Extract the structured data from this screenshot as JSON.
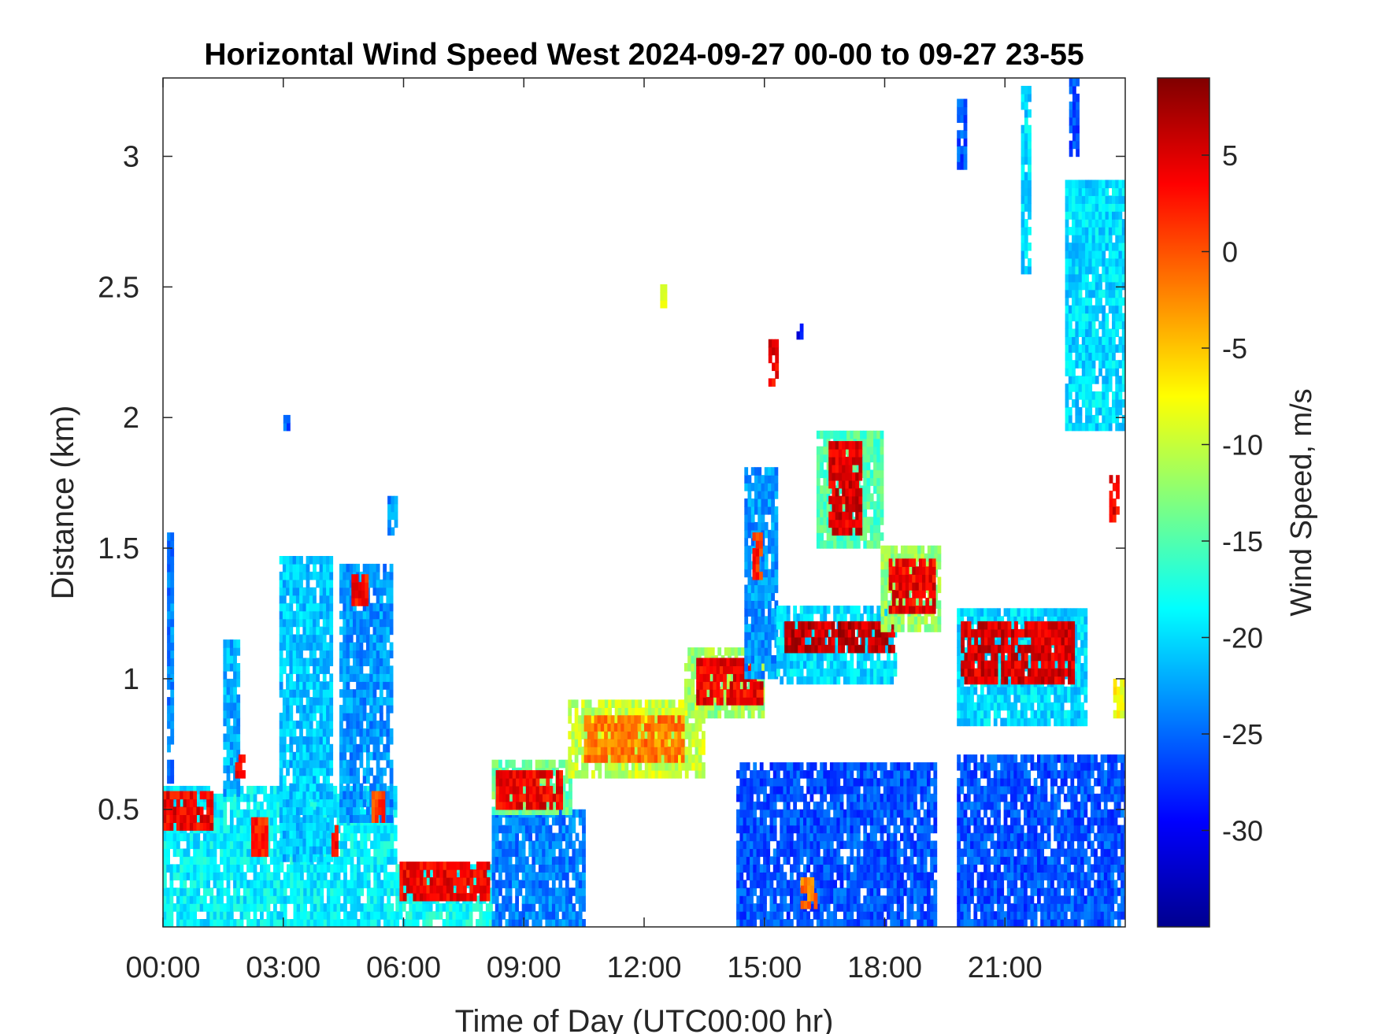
{
  "chart_data": {
    "type": "heatmap",
    "title": "Horizontal Wind Speed West 2024-09-27 00-00 to 09-27 23-55",
    "xlabel": "Time of Day (UTC00:00 hr)",
    "ylabel": "Distance (km)",
    "colorbar_label": "Wind Speed, m/s",
    "xlim": [
      0,
      24
    ],
    "ylim": [
      0.05,
      3.3
    ],
    "x_ticks": [
      {
        "value": 0,
        "label": "00:00"
      },
      {
        "value": 3,
        "label": "03:00"
      },
      {
        "value": 6,
        "label": "06:00"
      },
      {
        "value": 9,
        "label": "09:00"
      },
      {
        "value": 12,
        "label": "12:00"
      },
      {
        "value": 15,
        "label": "15:00"
      },
      {
        "value": 18,
        "label": "18:00"
      },
      {
        "value": 21,
        "label": "21:00"
      }
    ],
    "y_ticks": [
      {
        "value": 0.5,
        "label": "0.5"
      },
      {
        "value": 1,
        "label": "1"
      },
      {
        "value": 1.5,
        "label": "1.5"
      },
      {
        "value": 2,
        "label": "2"
      },
      {
        "value": 2.5,
        "label": "2.5"
      },
      {
        "value": 3,
        "label": "3"
      }
    ],
    "colorbar": {
      "colormap": "jet",
      "range": [
        -35,
        9
      ],
      "ticks": [
        {
          "value": 5,
          "label": "5"
        },
        {
          "value": 0,
          "label": "0"
        },
        {
          "value": -5,
          "label": "-5"
        },
        {
          "value": -10,
          "label": "-10"
        },
        {
          "value": -15,
          "label": "-15"
        },
        {
          "value": -20,
          "label": "-20"
        },
        {
          "value": -25,
          "label": "-25"
        },
        {
          "value": -30,
          "label": "-30"
        }
      ]
    },
    "regions": [
      {
        "t0": 0.0,
        "t1": 5.8,
        "d0": 0.05,
        "d1": 0.58,
        "speed": -19
      },
      {
        "t0": 0.0,
        "t1": 1.2,
        "d0": 0.42,
        "d1": 0.55,
        "speed": 4
      },
      {
        "t0": 0.1,
        "t1": 0.2,
        "d0": 0.6,
        "d1": 1.55,
        "speed": -24
      },
      {
        "t0": 1.5,
        "t1": 1.9,
        "d0": 0.55,
        "d1": 1.15,
        "speed": -22
      },
      {
        "t0": 1.8,
        "t1": 2.0,
        "d0": 0.62,
        "d1": 0.7,
        "speed": 3
      },
      {
        "t0": 2.2,
        "t1": 2.6,
        "d0": 0.32,
        "d1": 0.45,
        "speed": 2
      },
      {
        "t0": 2.9,
        "t1": 4.2,
        "d0": 0.3,
        "d1": 1.45,
        "speed": -21
      },
      {
        "t0": 4.2,
        "t1": 4.35,
        "d0": 0.32,
        "d1": 0.42,
        "speed": 3
      },
      {
        "t0": 4.4,
        "t1": 5.7,
        "d0": 0.45,
        "d1": 1.42,
        "speed": -23
      },
      {
        "t0": 4.7,
        "t1": 5.1,
        "d0": 1.28,
        "d1": 1.4,
        "speed": 3
      },
      {
        "t0": 5.2,
        "t1": 5.5,
        "d0": 0.45,
        "d1": 0.55,
        "speed": 1
      },
      {
        "t0": 5.6,
        "t1": 5.8,
        "d0": 1.55,
        "d1": 1.7,
        "speed": -23
      },
      {
        "t0": 5.8,
        "t1": 8.2,
        "d0": 0.05,
        "d1": 0.28,
        "speed": -18
      },
      {
        "t0": 5.9,
        "t1": 8.1,
        "d0": 0.15,
        "d1": 0.28,
        "speed": 4
      },
      {
        "t0": 8.2,
        "t1": 10.5,
        "d0": 0.05,
        "d1": 0.48,
        "speed": -24
      },
      {
        "t0": 8.2,
        "t1": 10.2,
        "d0": 0.48,
        "d1": 0.68,
        "speed": -14
      },
      {
        "t0": 8.3,
        "t1": 9.9,
        "d0": 0.5,
        "d1": 0.65,
        "speed": 4
      },
      {
        "t0": 10.1,
        "t1": 13.5,
        "d0": 0.62,
        "d1": 0.9,
        "speed": -10
      },
      {
        "t0": 10.5,
        "t1": 13.0,
        "d0": 0.68,
        "d1": 0.85,
        "speed": -2
      },
      {
        "t0": 13.0,
        "t1": 15.0,
        "d0": 0.85,
        "d1": 1.12,
        "speed": -12
      },
      {
        "t0": 13.3,
        "t1": 14.9,
        "d0": 0.9,
        "d1": 1.08,
        "speed": 4
      },
      {
        "t0": 14.5,
        "t1": 15.3,
        "d0": 1.0,
        "d1": 1.8,
        "speed": -23
      },
      {
        "t0": 14.7,
        "t1": 14.9,
        "d0": 1.38,
        "d1": 1.55,
        "speed": 2
      },
      {
        "t0": 15.1,
        "t1": 15.3,
        "d0": 2.12,
        "d1": 2.3,
        "speed": 4
      },
      {
        "t0": 15.3,
        "t1": 18.3,
        "d0": 0.98,
        "d1": 1.28,
        "speed": -20
      },
      {
        "t0": 15.5,
        "t1": 18.2,
        "d0": 1.1,
        "d1": 1.22,
        "speed": 6
      },
      {
        "t0": 16.3,
        "t1": 17.9,
        "d0": 1.5,
        "d1": 1.95,
        "speed": -15
      },
      {
        "t0": 16.6,
        "t1": 17.4,
        "d0": 1.55,
        "d1": 1.9,
        "speed": 5
      },
      {
        "t0": 17.9,
        "t1": 19.4,
        "d0": 1.18,
        "d1": 1.5,
        "speed": -12
      },
      {
        "t0": 18.1,
        "t1": 19.2,
        "d0": 1.25,
        "d1": 1.45,
        "speed": 4
      },
      {
        "t0": 14.3,
        "t1": 19.3,
        "d0": 0.05,
        "d1": 0.68,
        "speed": -26
      },
      {
        "t0": 15.9,
        "t1": 16.3,
        "d0": 0.12,
        "d1": 0.22,
        "speed": -2
      },
      {
        "t0": 19.8,
        "t1": 23.0,
        "d0": 0.82,
        "d1": 1.25,
        "speed": -20
      },
      {
        "t0": 19.9,
        "t1": 22.7,
        "d0": 0.98,
        "d1": 1.2,
        "speed": 5
      },
      {
        "t0": 19.8,
        "t1": 24.0,
        "d0": 0.05,
        "d1": 0.7,
        "speed": -26
      },
      {
        "t0": 22.5,
        "t1": 24.0,
        "d0": 1.95,
        "d1": 2.9,
        "speed": -20
      },
      {
        "t0": 21.4,
        "t1": 21.6,
        "d0": 2.55,
        "d1": 3.25,
        "speed": -20
      },
      {
        "t0": 19.8,
        "t1": 20.0,
        "d0": 2.95,
        "d1": 3.2,
        "speed": -26
      },
      {
        "t0": 22.6,
        "t1": 22.8,
        "d0": 3.0,
        "d1": 3.3,
        "speed": -26
      },
      {
        "t0": 23.6,
        "t1": 23.8,
        "d0": 1.6,
        "d1": 1.78,
        "speed": 4
      },
      {
        "t0": 23.7,
        "t1": 24.0,
        "d0": 0.85,
        "d1": 1.0,
        "speed": -8
      },
      {
        "t0": 12.4,
        "t1": 12.5,
        "d0": 2.42,
        "d1": 2.5,
        "speed": -8
      },
      {
        "t0": 15.8,
        "t1": 15.9,
        "d0": 2.3,
        "d1": 2.35,
        "speed": -30
      },
      {
        "t0": 3.0,
        "t1": 3.1,
        "d0": 1.95,
        "d1": 1.99,
        "speed": -26
      }
    ]
  }
}
